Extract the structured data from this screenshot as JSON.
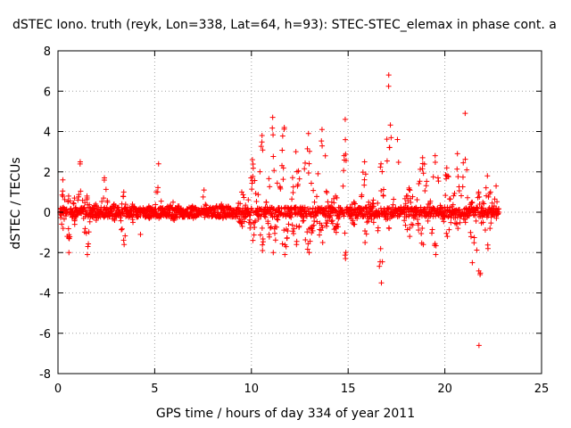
{
  "chart_data": {
    "type": "scatter",
    "title": "dSTEC Iono. truth (reyk, Lon=338, Lat=64, h=93): STEC-STEC_elemax in phase cont. a",
    "xlabel": "GPS time / hours of day 334 of year 2011",
    "ylabel": "dSTEC  / TECUs",
    "xlim": [
      0,
      25
    ],
    "ylim": [
      -8,
      8
    ],
    "xticks": [
      0,
      5,
      10,
      15,
      20,
      25
    ],
    "yticks": [
      -8,
      -6,
      -4,
      -2,
      0,
      2,
      4,
      6,
      8
    ],
    "grid": true,
    "marker": "+",
    "color": "#ff0000",
    "segments": [
      {
        "t0": 0.1,
        "t1": 0.4,
        "peak": 1.6,
        "low": -0.8
      },
      {
        "t0": 0.4,
        "t1": 0.7,
        "peak": 0.8,
        "low": -2.0
      },
      {
        "t0": 0.7,
        "t1": 1.0,
        "peak": 0.7,
        "low": -0.6
      },
      {
        "t0": 1.0,
        "t1": 1.3,
        "peak": 2.5,
        "low": 0.2
      },
      {
        "t0": 1.3,
        "t1": 1.7,
        "peak": 0.8,
        "low": -2.1
      },
      {
        "t0": 1.7,
        "t1": 2.2,
        "peak": 0.4,
        "low": -0.4
      },
      {
        "t0": 2.2,
        "t1": 2.6,
        "peak": 1.7,
        "low": -0.2
      },
      {
        "t0": 2.6,
        "t1": 3.2,
        "peak": 0.4,
        "low": -0.4
      },
      {
        "t0": 3.2,
        "t1": 3.6,
        "peak": 1.0,
        "low": -1.6
      },
      {
        "t0": 3.6,
        "t1": 4.1,
        "peak": 0.4,
        "low": -0.5
      },
      {
        "t0": 4.1,
        "t1": 4.4,
        "peak": 0.2,
        "low": -1.1
      },
      {
        "t0": 4.4,
        "t1": 5.0,
        "peak": 0.3,
        "low": -0.3
      },
      {
        "t0": 5.0,
        "t1": 5.4,
        "peak": 2.4,
        "low": -0.3
      },
      {
        "t0": 5.4,
        "t1": 6.5,
        "peak": 0.5,
        "low": -0.4
      },
      {
        "t0": 6.5,
        "t1": 7.4,
        "peak": 0.3,
        "low": -0.3
      },
      {
        "t0": 7.4,
        "t1": 7.7,
        "peak": 1.1,
        "low": 0.1
      },
      {
        "t0": 7.7,
        "t1": 9.2,
        "peak": 0.4,
        "low": -0.3
      },
      {
        "t0": 9.2,
        "t1": 9.8,
        "peak": 1.0,
        "low": -0.7
      },
      {
        "t0": 9.8,
        "t1": 10.3,
        "peak": 2.6,
        "low": -1.4
      },
      {
        "t0": 10.3,
        "t1": 10.8,
        "peak": 3.8,
        "low": -1.9
      },
      {
        "t0": 10.8,
        "t1": 11.4,
        "peak": 4.7,
        "low": -2.0
      },
      {
        "t0": 11.4,
        "t1": 12.0,
        "peak": 4.2,
        "low": -2.1
      },
      {
        "t0": 12.0,
        "t1": 12.6,
        "peak": 3.0,
        "low": -1.6
      },
      {
        "t0": 12.6,
        "t1": 13.3,
        "peak": 3.9,
        "low": -2.0
      },
      {
        "t0": 13.3,
        "t1": 14.0,
        "peak": 4.1,
        "low": -1.5
      },
      {
        "t0": 14.0,
        "t1": 14.7,
        "peak": 0.8,
        "low": -1.0
      },
      {
        "t0": 14.7,
        "t1": 15.0,
        "peak": 4.6,
        "low": -2.3
      },
      {
        "t0": 15.0,
        "t1": 15.6,
        "peak": 0.5,
        "low": -0.6
      },
      {
        "t0": 15.6,
        "t1": 16.1,
        "peak": 2.5,
        "low": -1.5
      },
      {
        "t0": 16.1,
        "t1": 16.5,
        "peak": 0.6,
        "low": -0.5
      },
      {
        "t0": 16.5,
        "t1": 16.9,
        "peak": 2.4,
        "low": -3.5
      },
      {
        "t0": 16.9,
        "t1": 17.3,
        "peak": 6.8,
        "low": -0.8
      },
      {
        "t0": 17.3,
        "t1": 17.8,
        "peak": 3.6,
        "low": 0.1
      },
      {
        "t0": 17.8,
        "t1": 18.5,
        "peak": 1.2,
        "low": -1.2
      },
      {
        "t0": 18.5,
        "t1": 19.2,
        "peak": 2.7,
        "low": -1.6
      },
      {
        "t0": 19.2,
        "t1": 19.8,
        "peak": 2.8,
        "low": -2.1
      },
      {
        "t0": 19.8,
        "t1": 20.4,
        "peak": 2.2,
        "low": -1.2
      },
      {
        "t0": 20.4,
        "t1": 20.9,
        "peak": 2.9,
        "low": -0.8
      },
      {
        "t0": 20.9,
        "t1": 21.2,
        "peak": 4.9,
        "low": -0.5
      },
      {
        "t0": 21.2,
        "t1": 21.6,
        "peak": 0.5,
        "low": -2.5
      },
      {
        "t0": 21.6,
        "t1": 21.9,
        "peak": 1.0,
        "low": -6.6
      },
      {
        "t0": 21.9,
        "t1": 22.5,
        "peak": 1.8,
        "low": -1.8
      },
      {
        "t0": 22.5,
        "t1": 22.8,
        "peak": 1.3,
        "low": -0.3
      }
    ]
  }
}
